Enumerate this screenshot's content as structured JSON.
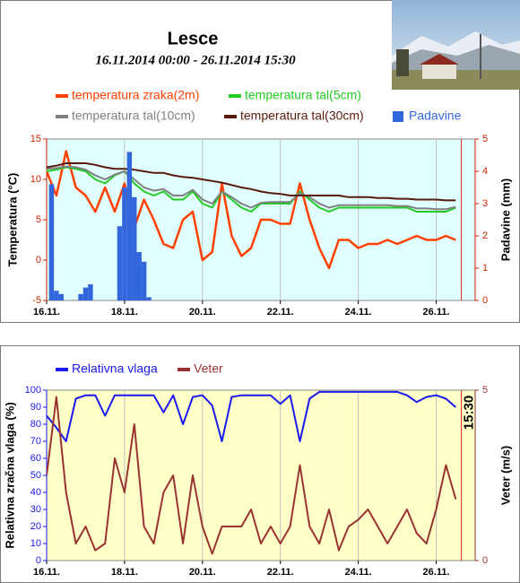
{
  "chart_data": [
    {
      "type": "line",
      "title": "Lesce",
      "subtitle": "16.11.2014 00:00 - 26.11.2014 15:30",
      "y_label": "Temperatura (°C)",
      "y2_label": "Padavine (mm)",
      "x": [
        0,
        0.25,
        0.5,
        0.75,
        1,
        1.25,
        1.5,
        1.75,
        2,
        2.25,
        2.5,
        2.75,
        3,
        3.25,
        3.5,
        3.75,
        4,
        4.25,
        4.5,
        4.75,
        5,
        5.25,
        5.5,
        5.75,
        6,
        6.25,
        6.5,
        6.75,
        7,
        7.25,
        7.5,
        7.75,
        8,
        8.25,
        8.5,
        8.75,
        9,
        9.25,
        9.5,
        9.75,
        10,
        10.25,
        10.5
      ],
      "xlim": [
        0,
        11
      ],
      "xticks": [
        {
          "value": 0,
          "label": "16.11."
        },
        {
          "value": 2,
          "label": "18.11."
        },
        {
          "value": 4,
          "label": "20.11."
        },
        {
          "value": 6,
          "label": "22.11."
        },
        {
          "value": 8,
          "label": "24.11."
        },
        {
          "value": 10,
          "label": "26.11."
        }
      ],
      "ylim": [
        -5,
        15
      ],
      "yticks": [
        -5,
        0,
        5,
        10,
        15
      ],
      "y2lim": [
        0,
        5
      ],
      "y2ticks": [
        0,
        1,
        2,
        3,
        4,
        5
      ],
      "grid": "x",
      "now_marker": {
        "x": 10.646
      },
      "series": [
        {
          "name": "temperatura zraka(2m)",
          "color": "#ff4000",
          "type": "line",
          "values": [
            11,
            8,
            13.5,
            9,
            8,
            6,
            9,
            6,
            9.5,
            4,
            7.5,
            5,
            2,
            1.5,
            5,
            6,
            0,
            1,
            9.5,
            3,
            0.5,
            1.5,
            5,
            5,
            4.5,
            4.5,
            9.5,
            5,
            1.5,
            -1,
            2.5,
            2.5,
            1.5,
            2,
            2,
            2.5,
            2,
            2.5,
            3,
            2.5,
            2.5,
            3,
            2.5
          ]
        },
        {
          "name": "temperatura tal(5cm)",
          "color": "#22cc22",
          "type": "line",
          "values": [
            11,
            11.2,
            11.5,
            11.3,
            11,
            10,
            9.5,
            10.5,
            11,
            9.5,
            8.5,
            8,
            8.5,
            7.5,
            7.5,
            8.5,
            7,
            6.5,
            8.5,
            7.5,
            6.5,
            6,
            7,
            7,
            7,
            7,
            8.5,
            7.5,
            6.5,
            6,
            6.5,
            6.5,
            6.5,
            6.5,
            6.5,
            6.5,
            6.5,
            6.5,
            6,
            6,
            6,
            6,
            6.5
          ]
        },
        {
          "name": "temperatura tal(10cm)",
          "color": "#808080",
          "type": "line",
          "values": [
            11.3,
            11.4,
            11.6,
            11.5,
            11.2,
            10.5,
            10,
            10.6,
            11,
            10,
            9,
            8.6,
            8.8,
            8,
            8,
            8.7,
            7.5,
            7,
            8.5,
            7.8,
            7,
            6.5,
            7.1,
            7.2,
            7.2,
            7.2,
            8.3,
            7.8,
            7,
            6.5,
            6.8,
            6.8,
            6.8,
            6.8,
            6.8,
            6.8,
            6.7,
            6.7,
            6.4,
            6.4,
            6.3,
            6.3,
            6.6
          ]
        },
        {
          "name": "temperatura tal(30cm)",
          "color": "#5a1a0a",
          "type": "line",
          "values": [
            11.5,
            11.7,
            12,
            12,
            12,
            11.8,
            11.5,
            11.3,
            11.3,
            11.2,
            11,
            10.8,
            10.8,
            10.5,
            10.3,
            10.2,
            10,
            9.8,
            9.6,
            9.3,
            9,
            8.8,
            8.5,
            8.3,
            8.2,
            8,
            8,
            8,
            8,
            8,
            8,
            7.8,
            7.8,
            7.8,
            7.7,
            7.7,
            7.6,
            7.6,
            7.5,
            7.5,
            7.5,
            7.4,
            7.4
          ]
        },
        {
          "name": "Padavine",
          "color": "#3366dd",
          "type": "bar",
          "axis": "y2",
          "bar_width": 0.125,
          "x": [
            0.125,
            0.25,
            0.375,
            0.875,
            1,
            1.125,
            1.875,
            2,
            2.125,
            2.25,
            2.375,
            2.5,
            2.625
          ],
          "values": [
            3.6,
            0.3,
            0.2,
            0.2,
            0.4,
            0.5,
            2.3,
            3.5,
            4.6,
            3.2,
            1.5,
            1.2,
            0.1
          ]
        }
      ]
    },
    {
      "type": "line",
      "y_label": "Relativna zračna vlaga (%)",
      "y2_label": "Veter (m/s)",
      "x": [
        0,
        0.25,
        0.5,
        0.75,
        1,
        1.25,
        1.5,
        1.75,
        2,
        2.25,
        2.5,
        2.75,
        3,
        3.25,
        3.5,
        3.75,
        4,
        4.25,
        4.5,
        4.75,
        5,
        5.25,
        5.5,
        5.75,
        6,
        6.25,
        6.5,
        6.75,
        7,
        7.25,
        7.5,
        7.75,
        8,
        8.25,
        8.5,
        8.75,
        9,
        9.25,
        9.5,
        9.75,
        10,
        10.25,
        10.5
      ],
      "xlim": [
        0,
        11
      ],
      "xticks": [
        {
          "value": 0,
          "label": "16.11."
        },
        {
          "value": 2,
          "label": "18.11."
        },
        {
          "value": 4,
          "label": "20.11."
        },
        {
          "value": 6,
          "label": "22.11."
        },
        {
          "value": 8,
          "label": "24.11."
        },
        {
          "value": 10,
          "label": "26.11."
        }
      ],
      "ylim": [
        0,
        100
      ],
      "yticks": [
        0,
        10,
        20,
        30,
        40,
        50,
        60,
        70,
        80,
        90,
        100
      ],
      "y2lim": [
        0,
        5
      ],
      "y2ticks": [
        0,
        5
      ],
      "grid": "x",
      "now_marker": {
        "x": 10.646,
        "label": "15:30"
      },
      "series": [
        {
          "name": "Relativna vlaga",
          "color": "#1a1aee",
          "type": "line",
          "values": [
            85,
            78,
            70,
            95,
            97,
            97,
            85,
            97,
            97,
            97,
            97,
            97,
            87,
            97,
            80,
            96,
            97,
            91,
            70,
            96,
            97,
            97,
            97,
            97,
            92,
            97,
            70,
            95,
            99,
            99,
            99,
            99,
            99,
            99,
            99,
            99,
            99,
            97,
            93,
            96,
            97,
            95,
            90
          ]
        },
        {
          "name": "Veter",
          "color": "#993333",
          "type": "line",
          "axis": "y2",
          "values": [
            2.5,
            4.8,
            2,
            0.5,
            1,
            0.3,
            0.5,
            3,
            2,
            4,
            1,
            0.5,
            2,
            2.5,
            0.5,
            2.5,
            1,
            0.2,
            1,
            1,
            1,
            1.5,
            0.5,
            1,
            0.5,
            1,
            2.8,
            1,
            0.5,
            1.5,
            0.3,
            1,
            1.2,
            1.5,
            1,
            0.5,
            1,
            1.5,
            0.8,
            0.5,
            1.5,
            2.8,
            1.8
          ]
        }
      ]
    }
  ]
}
